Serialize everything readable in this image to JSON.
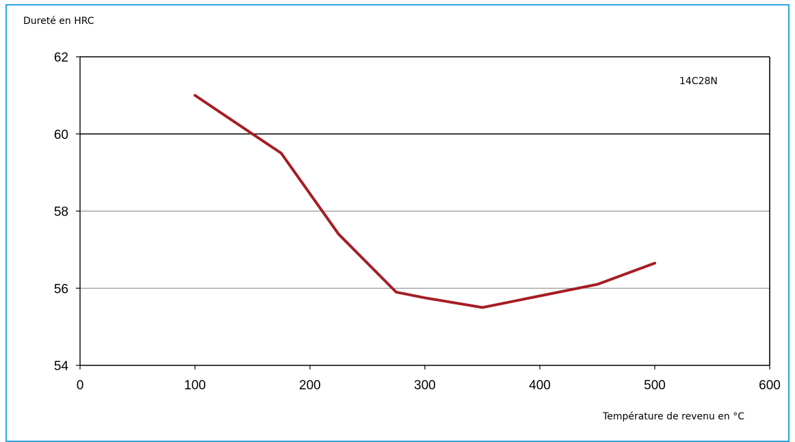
{
  "chart_data": {
    "type": "line",
    "ylabel": "Dureté en HRC",
    "xlabel": "Température de revenu en °C",
    "xlim": [
      0,
      600
    ],
    "ylim": [
      54,
      62
    ],
    "xticks": [
      0,
      100,
      200,
      300,
      400,
      500,
      600
    ],
    "yticks": [
      54,
      56,
      58,
      60,
      62
    ],
    "grid": "horizontal",
    "annotation": "14C28N",
    "series": [
      {
        "color": "#a51d24",
        "x": [
          100,
          150,
          175,
          225,
          275,
          300,
          350,
          400,
          450,
          500
        ],
        "y": [
          61.0,
          60.0,
          59.5,
          57.4,
          55.9,
          55.75,
          55.5,
          55.8,
          56.1,
          56.65
        ]
      }
    ]
  },
  "colors": {
    "frame": "#2aa3dc",
    "line": "#a51d24",
    "grid": "#808080",
    "axis": "#000000"
  }
}
